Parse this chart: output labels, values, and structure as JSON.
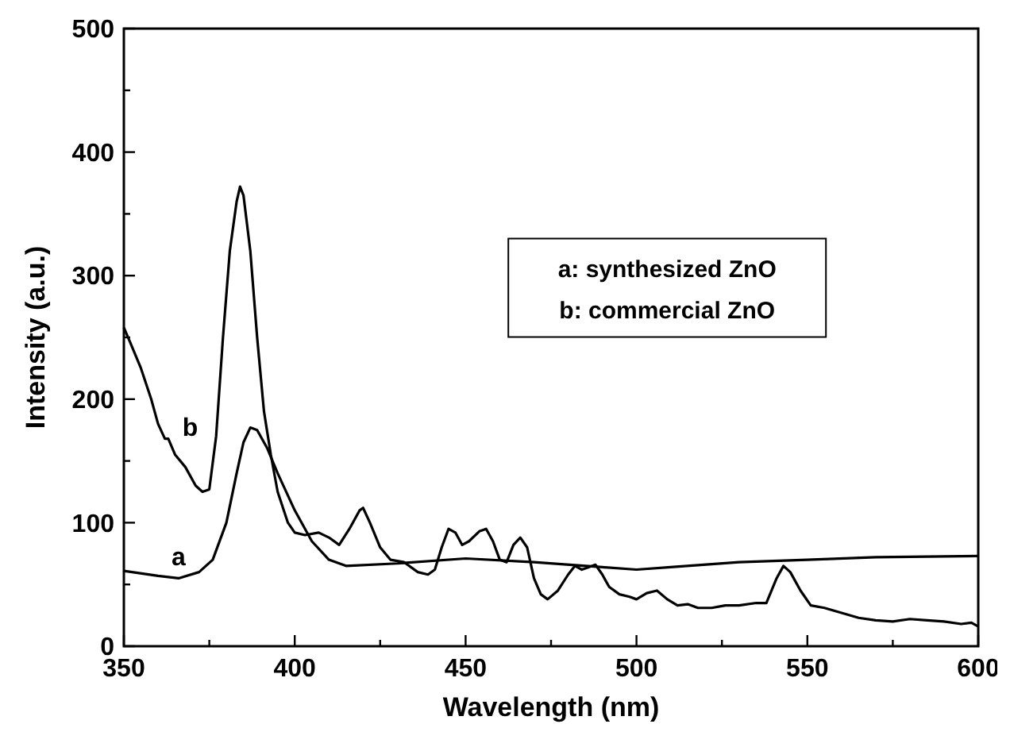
{
  "chart_data": {
    "type": "line",
    "xlabel": "Wavelength (nm)",
    "ylabel": "Intensity (a.u.)",
    "xlim": [
      350,
      600
    ],
    "ylim": [
      0,
      500
    ],
    "xticks": [
      350,
      {
        "value": 375,
        "label": null
      },
      400,
      {
        "value": 425,
        "label": null
      },
      450,
      {
        "value": 475,
        "label": null
      },
      500,
      {
        "value": 525,
        "label": null
      },
      550,
      {
        "value": 575,
        "label": null
      },
      600
    ],
    "yticks": [
      0,
      {
        "value": 50,
        "label": null
      },
      100,
      {
        "value": 150,
        "label": null
      },
      200,
      {
        "value": 250,
        "label": null
      },
      300,
      {
        "value": 350,
        "label": null
      },
      400,
      {
        "value": 450,
        "label": null
      },
      500
    ],
    "grid": false,
    "line_style": "solid",
    "annotations": [
      "a: synthesized ZnO",
      "b: commercial ZnO"
    ],
    "series": [
      {
        "name": "a",
        "color": "#000000",
        "x": [
          350,
          360,
          366,
          372,
          376,
          380,
          383,
          385,
          387,
          389,
          392,
          395,
          400,
          405,
          410,
          415,
          430,
          450,
          470,
          490,
          500,
          510,
          530,
          550,
          570,
          600
        ],
        "values": [
          61,
          57,
          55,
          60,
          70,
          100,
          140,
          165,
          177,
          175,
          160,
          140,
          110,
          85,
          70,
          65,
          67,
          71,
          68,
          64,
          62,
          64,
          68,
          70,
          72,
          73
        ]
      },
      {
        "name": "b",
        "color": "#000000",
        "x": [
          350,
          352,
          355,
          358,
          360,
          362,
          363,
          365,
          368,
          371,
          373,
          375,
          377,
          379,
          381,
          383,
          384,
          385,
          387,
          389,
          391,
          393,
          395,
          398,
          400,
          403,
          407,
          410,
          413,
          416,
          419,
          420,
          422,
          425,
          428,
          432,
          436,
          439,
          441,
          443,
          445,
          447,
          449,
          451,
          454,
          456,
          458,
          460,
          462,
          464,
          466,
          468,
          470,
          472,
          474,
          477,
          480,
          482,
          484,
          486,
          488,
          490,
          492,
          495,
          498,
          500,
          503,
          506,
          509,
          512,
          515,
          518,
          522,
          526,
          530,
          535,
          538,
          541,
          543,
          545,
          548,
          551,
          555,
          560,
          565,
          570,
          575,
          580,
          585,
          590,
          595,
          598,
          600
        ],
        "values": [
          258,
          245,
          225,
          200,
          180,
          168,
          168,
          155,
          145,
          130,
          125,
          127,
          170,
          250,
          320,
          360,
          372,
          365,
          320,
          250,
          190,
          155,
          125,
          100,
          92,
          90,
          92,
          88,
          82,
          95,
          110,
          112,
          100,
          80,
          70,
          68,
          60,
          58,
          62,
          80,
          95,
          92,
          82,
          85,
          93,
          95,
          85,
          70,
          68,
          82,
          88,
          80,
          55,
          42,
          38,
          45,
          58,
          65,
          62,
          64,
          66,
          58,
          48,
          42,
          40,
          38,
          43,
          45,
          38,
          33,
          34,
          31,
          31,
          33,
          33,
          35,
          35,
          55,
          65,
          60,
          45,
          33,
          31,
          27,
          23,
          21,
          20,
          22,
          21,
          20,
          18,
          19,
          16
        ]
      }
    ]
  }
}
